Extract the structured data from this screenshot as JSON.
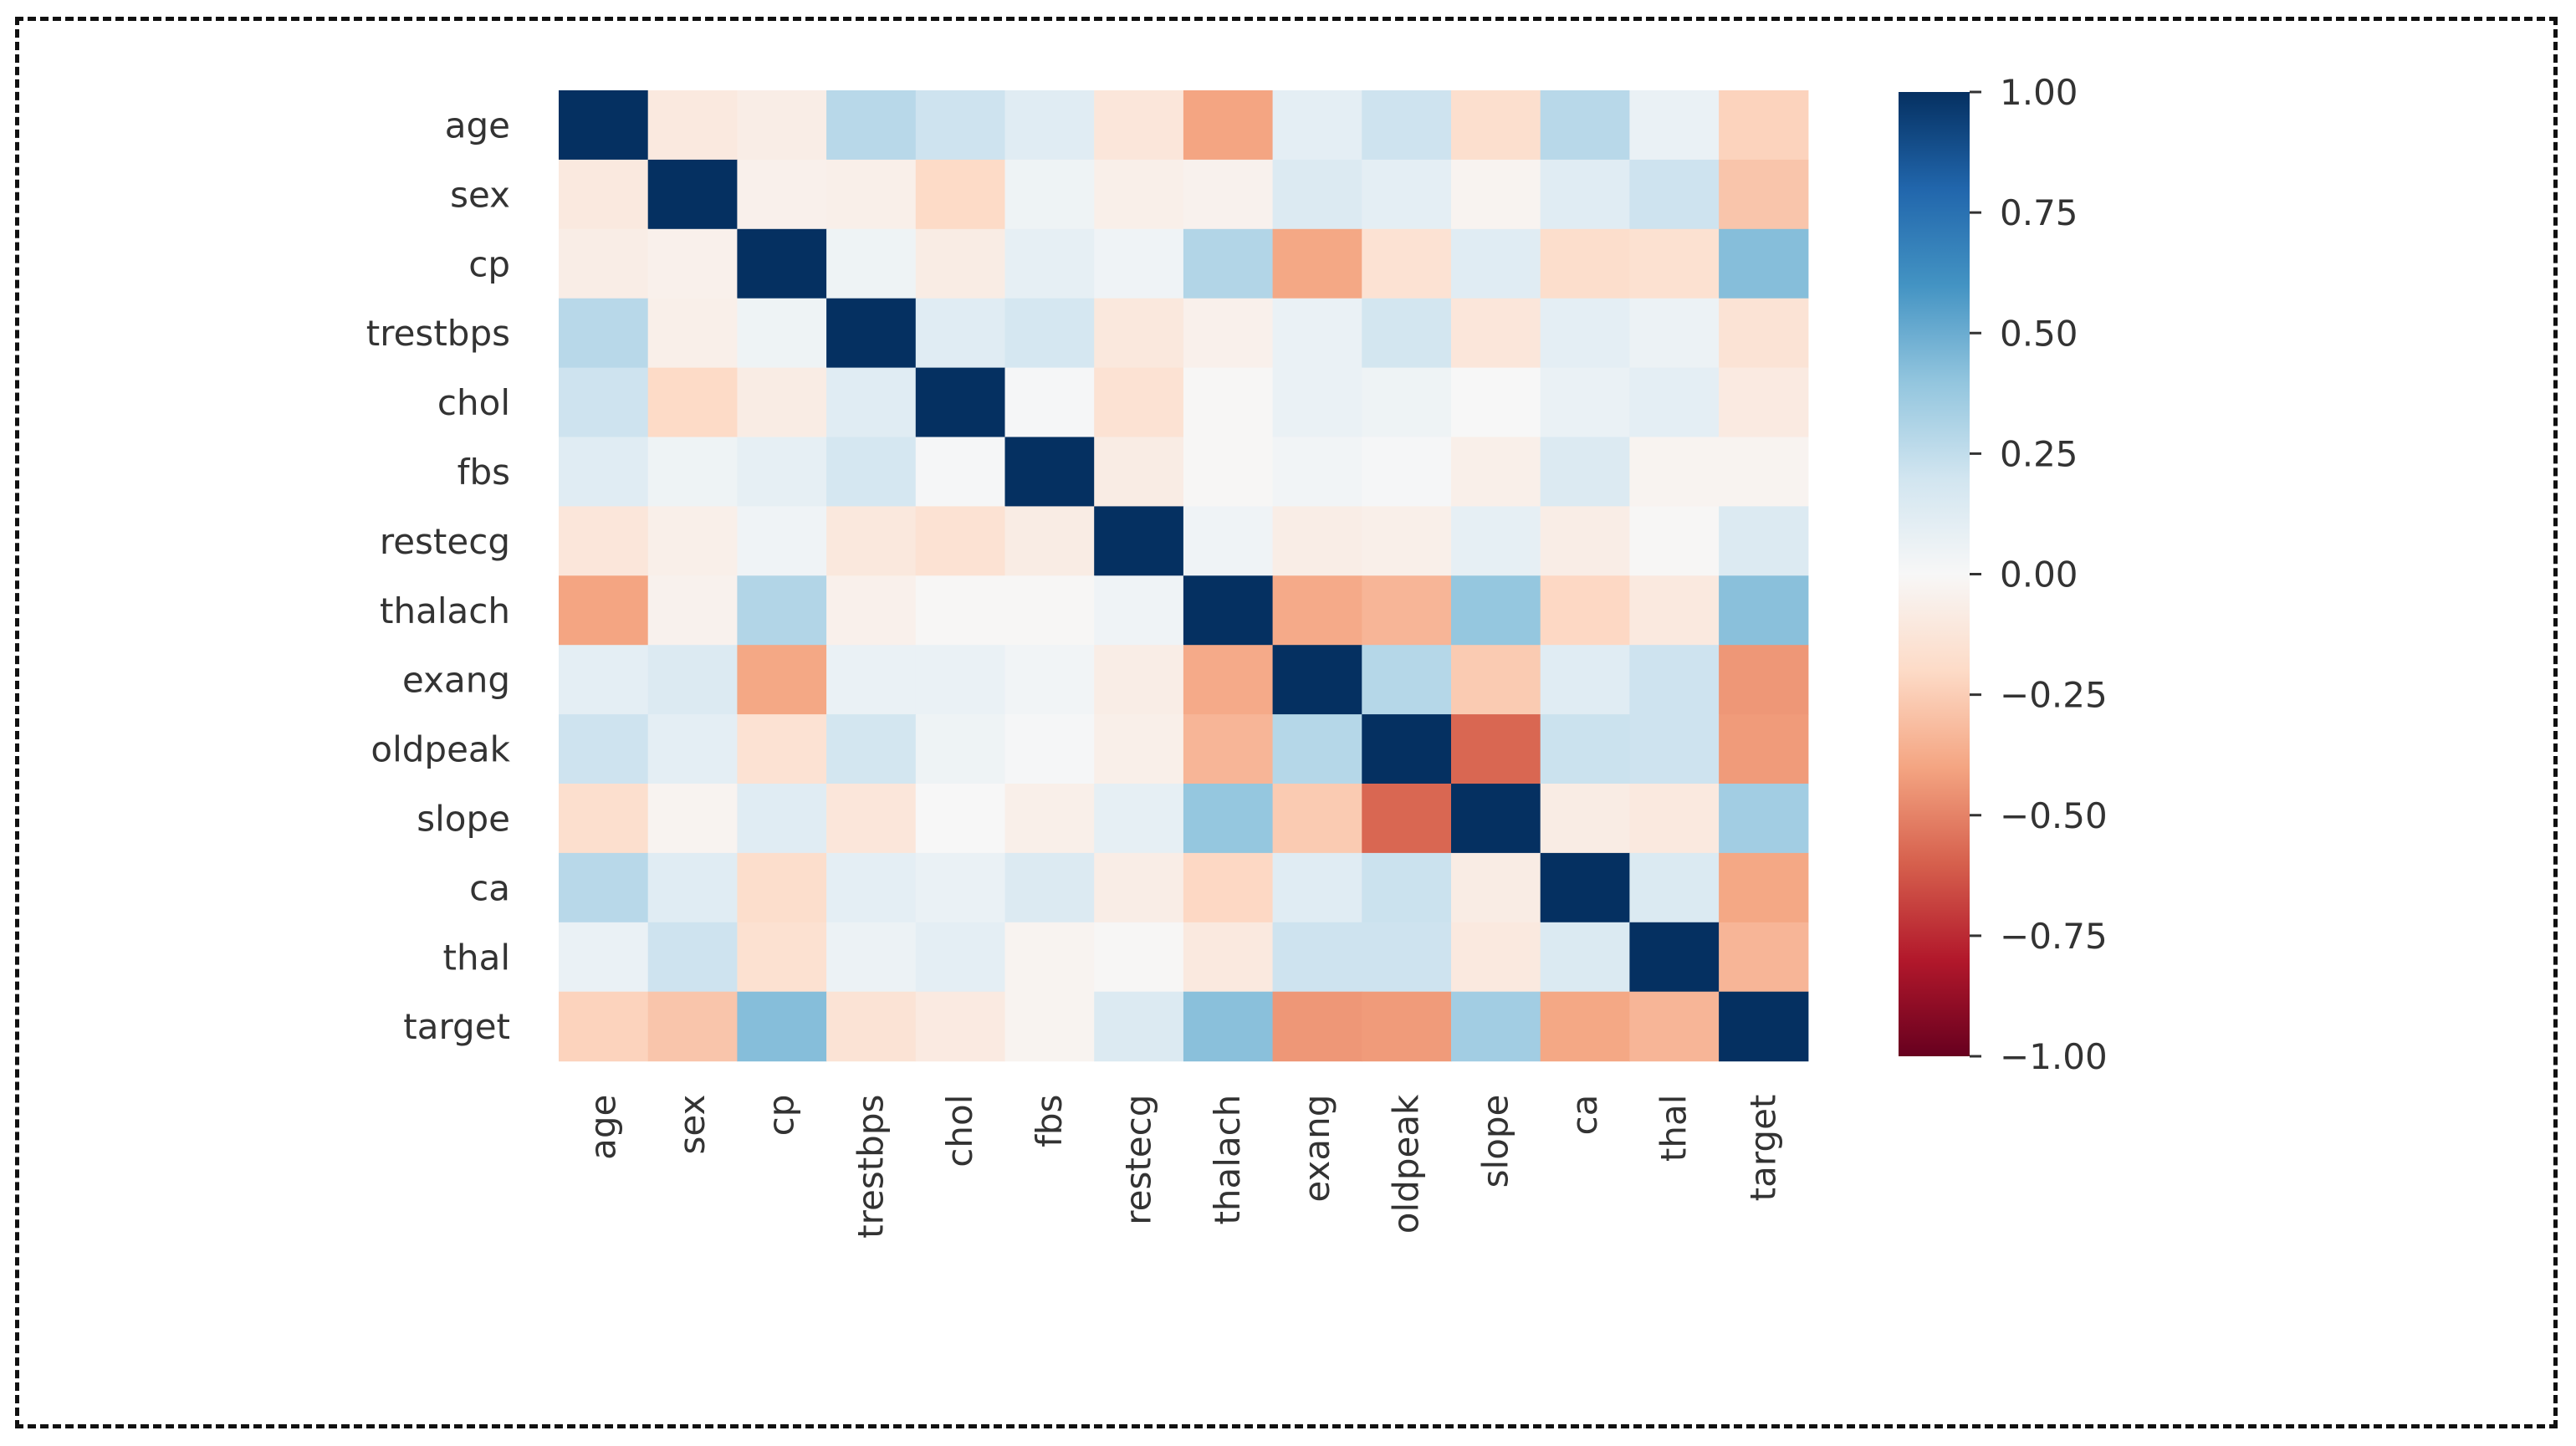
{
  "chart_data": {
    "type": "heatmap",
    "title": "",
    "xlabel": "",
    "ylabel": "",
    "row_labels": [
      "age",
      "sex",
      "cp",
      "trestbps",
      "chol",
      "fbs",
      "restecg",
      "thalach",
      "exang",
      "oldpeak",
      "slope",
      "ca",
      "thal",
      "target"
    ],
    "col_labels": [
      "age",
      "sex",
      "cp",
      "trestbps",
      "chol",
      "fbs",
      "restecg",
      "thalach",
      "exang",
      "oldpeak",
      "slope",
      "ca",
      "thal",
      "target"
    ],
    "values": [
      [
        1.0,
        -0.1,
        -0.07,
        0.28,
        0.21,
        0.12,
        -0.12,
        -0.4,
        0.1,
        0.21,
        -0.17,
        0.28,
        0.07,
        -0.23
      ],
      [
        -0.1,
        1.0,
        -0.05,
        -0.06,
        -0.2,
        0.05,
        -0.06,
        -0.04,
        0.14,
        0.1,
        -0.03,
        0.12,
        0.21,
        -0.28
      ],
      [
        -0.07,
        -0.05,
        1.0,
        0.05,
        -0.08,
        0.09,
        0.04,
        0.3,
        -0.39,
        -0.15,
        0.12,
        -0.18,
        -0.16,
        0.43
      ],
      [
        0.28,
        -0.06,
        0.05,
        1.0,
        0.12,
        0.18,
        -0.11,
        -0.05,
        0.07,
        0.19,
        -0.12,
        0.1,
        0.06,
        -0.14
      ],
      [
        0.21,
        -0.2,
        -0.08,
        0.12,
        1.0,
        0.01,
        -0.15,
        -0.01,
        0.07,
        0.05,
        0.0,
        0.07,
        0.1,
        -0.09
      ],
      [
        0.12,
        0.05,
        0.09,
        0.18,
        0.01,
        1.0,
        -0.08,
        -0.01,
        0.03,
        0.01,
        -0.06,
        0.14,
        -0.03,
        -0.03
      ],
      [
        -0.12,
        -0.06,
        0.04,
        -0.11,
        -0.15,
        -0.08,
        1.0,
        0.04,
        -0.07,
        -0.06,
        0.09,
        -0.07,
        -0.01,
        0.14
      ],
      [
        -0.4,
        -0.04,
        0.3,
        -0.05,
        -0.01,
        -0.01,
        0.04,
        1.0,
        -0.38,
        -0.34,
        0.39,
        -0.21,
        -0.1,
        0.42
      ],
      [
        0.1,
        0.14,
        -0.39,
        0.07,
        0.07,
        0.03,
        -0.07,
        -0.38,
        1.0,
        0.29,
        -0.26,
        0.12,
        0.21,
        -0.44
      ],
      [
        0.21,
        0.1,
        -0.15,
        0.19,
        0.05,
        0.01,
        -0.06,
        -0.34,
        0.29,
        1.0,
        -0.58,
        0.22,
        0.21,
        -0.43
      ],
      [
        -0.17,
        -0.03,
        0.12,
        -0.12,
        0.0,
        -0.06,
        0.09,
        0.39,
        -0.26,
        -0.58,
        1.0,
        -0.08,
        -0.1,
        0.35
      ],
      [
        0.28,
        0.12,
        -0.18,
        0.1,
        0.07,
        0.14,
        -0.07,
        -0.21,
        0.12,
        0.22,
        -0.08,
        1.0,
        0.15,
        -0.39
      ],
      [
        0.07,
        0.21,
        -0.16,
        0.06,
        0.1,
        -0.03,
        -0.01,
        -0.1,
        0.21,
        0.21,
        -0.1,
        0.15,
        1.0,
        -0.34
      ],
      [
        -0.23,
        -0.28,
        0.43,
        -0.14,
        -0.09,
        -0.03,
        0.14,
        0.42,
        -0.44,
        -0.43,
        0.35,
        -0.39,
        -0.34,
        1.0
      ]
    ],
    "colorscale": {
      "name": "RdBu",
      "min": -1.0,
      "max": 1.0,
      "stops": [
        "#67001f",
        "#b2182b",
        "#d6604d",
        "#f4a582",
        "#fddbc7",
        "#f7f7f7",
        "#d1e5f0",
        "#92c5de",
        "#4393c3",
        "#2166ac",
        "#053061"
      ]
    },
    "colorbar_ticks": [
      1.0,
      0.75,
      0.5,
      0.25,
      0.0,
      -0.25,
      -0.5,
      -0.75,
      -1.0
    ],
    "colorbar_tick_labels": [
      "1.00",
      "0.75",
      "0.50",
      "0.25",
      "0.00",
      "−0.25",
      "−0.50",
      "−0.75",
      "−1.00"
    ],
    "legend": "colorbar-right"
  }
}
